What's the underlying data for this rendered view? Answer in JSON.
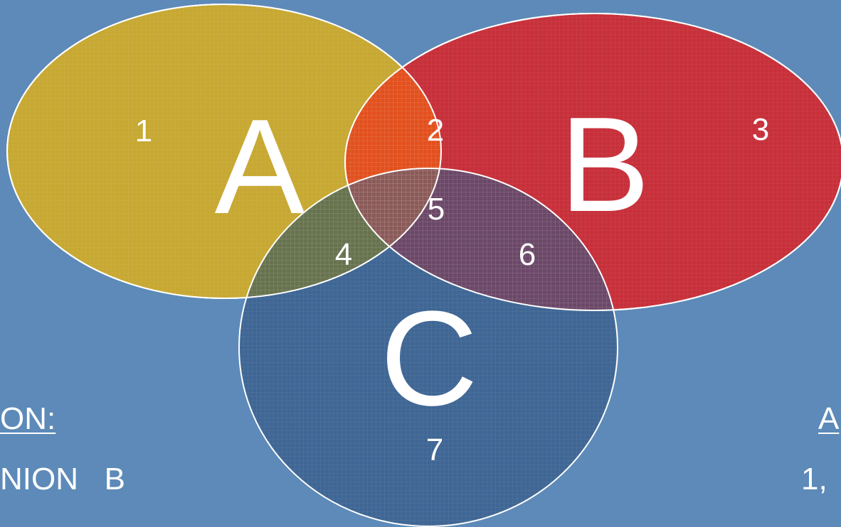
{
  "diagram": {
    "sets": [
      {
        "label": "A",
        "color": "#c7a832"
      },
      {
        "label": "B",
        "color": "#c7303a"
      },
      {
        "label": "C",
        "color": "#3f6694"
      }
    ],
    "overlap_colors": {
      "A_B": "#e2501e",
      "A_C": "#67724e",
      "B_C": "#6b4868",
      "A_B_C": "#8a5a58"
    },
    "regions": [
      "1",
      "2",
      "3",
      "4",
      "5",
      "6",
      "7"
    ]
  },
  "left_text": {
    "heading": "ON:",
    "line": "NION   B"
  },
  "right_text": {
    "heading": "A",
    "line": "1,"
  }
}
